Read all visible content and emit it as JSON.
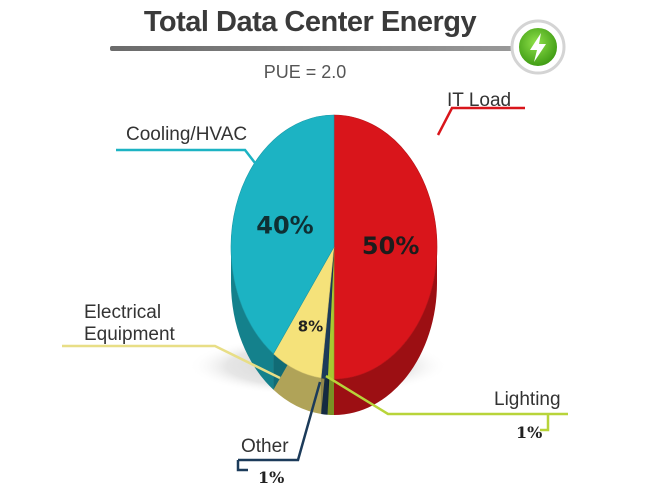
{
  "header": {
    "title": "Total Data Center Energy",
    "subtitle": "PUE = 2.0",
    "badge_icon": "lightning-bolt-icon",
    "accent_color": "#4caf1e"
  },
  "chart_data": {
    "type": "pie",
    "title": "Total Data Center Energy",
    "subtitle": "PUE = 2.0",
    "slices": [
      {
        "label": "IT Load",
        "value": 50,
        "display": "50%",
        "color": "#d9151b"
      },
      {
        "label": "Lighting",
        "value": 1,
        "display": "1%",
        "color": "#a8c832"
      },
      {
        "label": "Other",
        "value": 1,
        "display": "1%",
        "color": "#1c3b5a"
      },
      {
        "label": "Electrical\nEquipment",
        "value": 8,
        "display": "8%",
        "color": "#f5e27a"
      },
      {
        "label": "Cooling/HVAC",
        "value": 40,
        "display": "40%",
        "color": "#1cb3c3"
      }
    ],
    "legend": "none"
  }
}
